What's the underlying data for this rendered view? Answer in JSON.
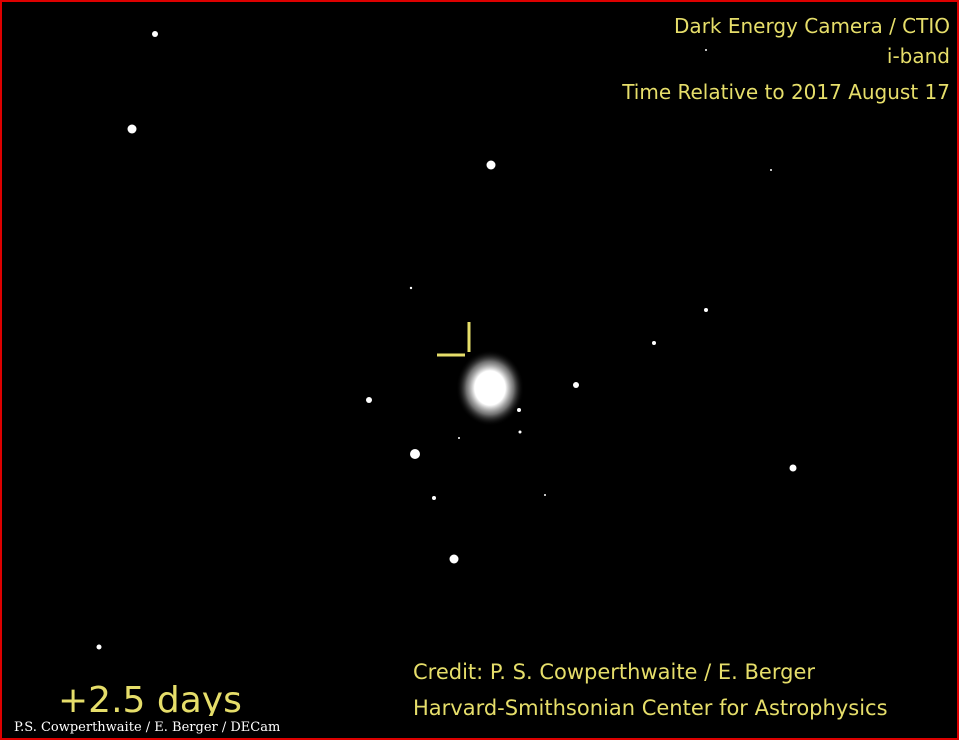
{
  "header": {
    "lines": [
      "Dark Energy Camera / CTIO",
      "i-band",
      "Time Relative to 2017 August 17"
    ]
  },
  "time": "+2.5 days",
  "credit": {
    "lines": [
      "Credit: P. S. Cowperthwaite / E. Berger",
      "Harvard-Smithsonian Center for Astrophysics"
    ]
  },
  "watermark": "P.S. Cowperthwaite / E. Berger / DECam"
}
